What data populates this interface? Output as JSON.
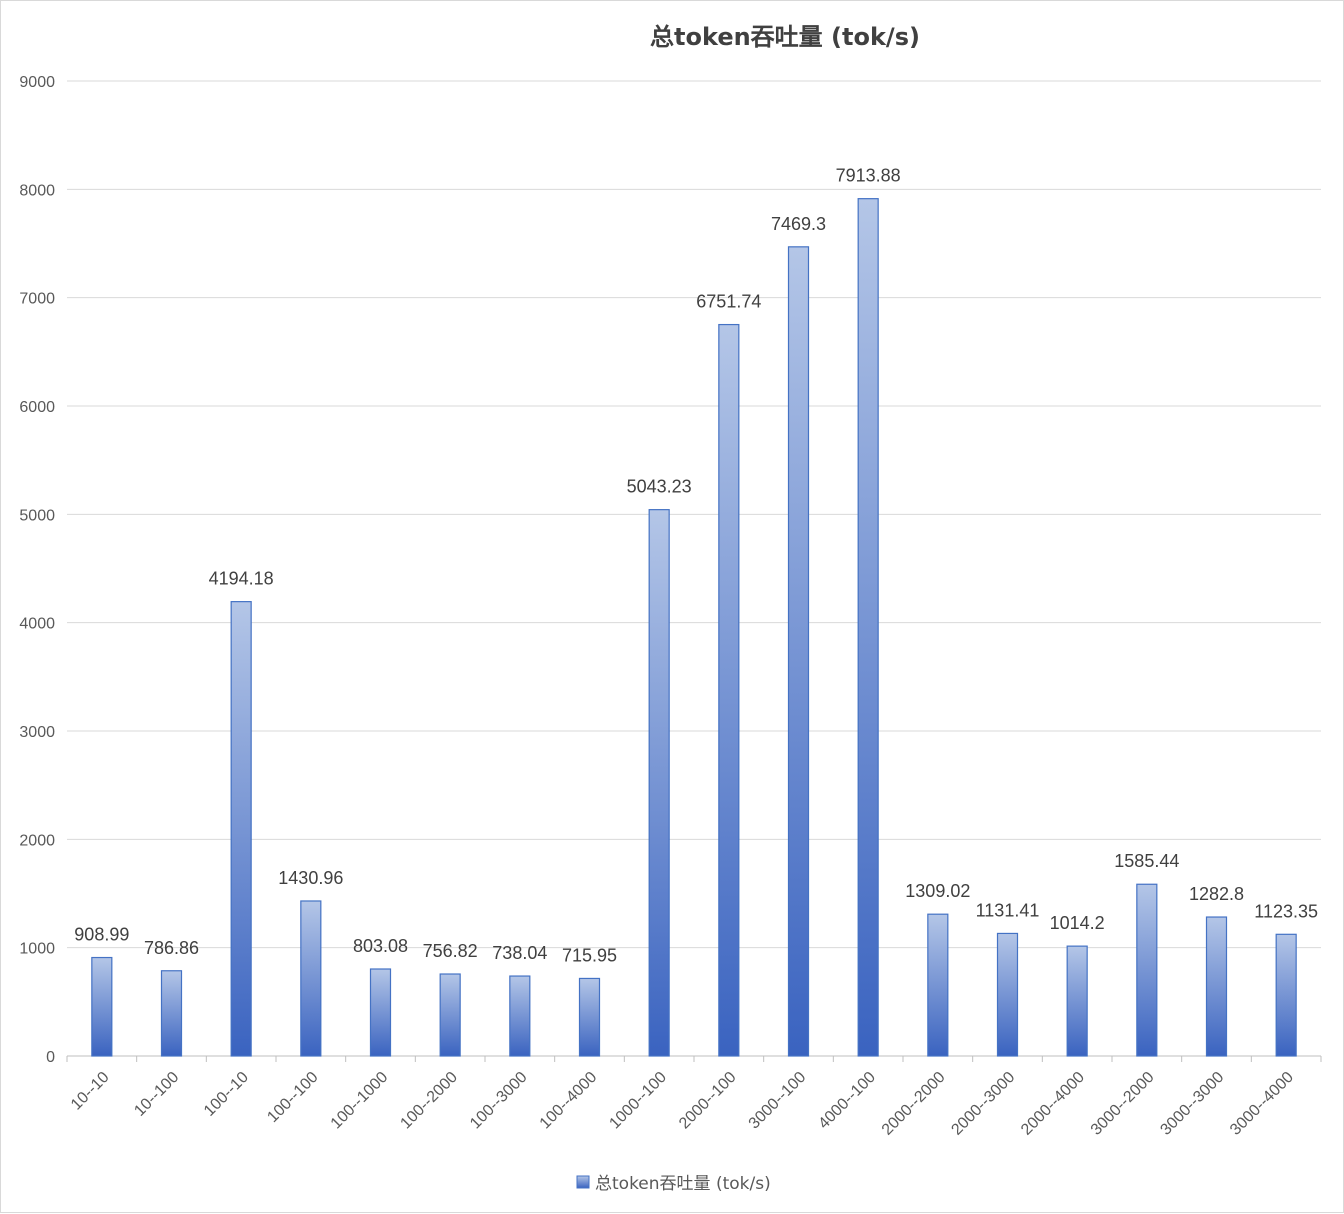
{
  "chart_data": {
    "type": "bar",
    "title": "总token吞吐量 (tok/s)",
    "xlabel": "",
    "ylabel": "",
    "ylim": [
      0,
      9000
    ],
    "yticks": [
      0,
      1000,
      2000,
      3000,
      4000,
      5000,
      6000,
      7000,
      8000,
      9000
    ],
    "grid": true,
    "legend_position": "bottom",
    "colors": {
      "bar_top": "#b4c6e7",
      "bar_bottom": "#3a63c0",
      "bar_stroke": "#4472c4",
      "grid": "#d9d9d9",
      "axis": "#bfbfbf"
    },
    "categories": [
      "10--10",
      "10--100",
      "100--10",
      "100--100",
      "100--1000",
      "100--2000",
      "100--3000",
      "100--4000",
      "1000--100",
      "2000--100",
      "3000--100",
      "4000--100",
      "2000--2000",
      "2000--3000",
      "2000--4000",
      "3000--2000",
      "3000--3000",
      "3000--4000"
    ],
    "series": [
      {
        "name": "总token吞吐量 (tok/s)",
        "values": [
          908.99,
          786.86,
          4194.18,
          1430.96,
          803.08,
          756.82,
          738.04,
          715.95,
          5043.23,
          6751.74,
          7469.3,
          7913.88,
          1309.02,
          1131.41,
          1014.2,
          1585.44,
          1282.8,
          1123.35
        ],
        "labels": [
          "908.99",
          "786.86",
          "4194.18",
          "1430.96",
          "803.08",
          "756.82",
          "738.04",
          "715.95",
          "5043.23",
          "6751.74",
          "7469.3",
          "7913.88",
          "1309.02",
          "1131.41",
          "1014.2",
          "1585.44",
          "1282.8",
          "1123.35"
        ]
      }
    ]
  }
}
